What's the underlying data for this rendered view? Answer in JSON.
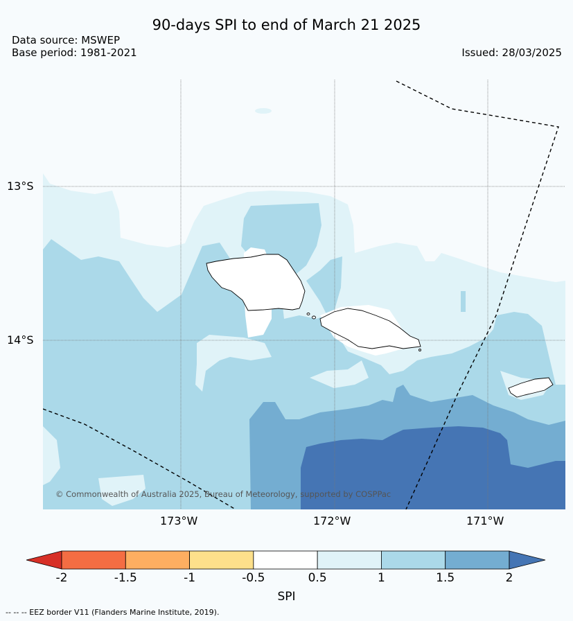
{
  "title": "90-days SPI to end of March 21 2025",
  "data_source": "Data source: MSWEP",
  "base_period": "Base period: 1981-2021",
  "issued": "Issued: 28/03/2025",
  "lat_labels": [
    "13°S",
    "14°S"
  ],
  "lon_labels": [
    "173°W",
    "172°W",
    "171°W"
  ],
  "copyright": "© Commonwealth of Australia 2025, Bureau of Meteorology, supported by COSPPac",
  "colorbar": {
    "label": "SPI",
    "ticks": [
      "-2",
      "-1.5",
      "-1",
      "-0.5",
      "0.5",
      "1",
      "1.5",
      "2"
    ],
    "colors": [
      "#d73027",
      "#f46d43",
      "#fdae61",
      "#fee08b",
      "#ffffff",
      "#e0f3f8",
      "#abd9e9",
      "#74add1",
      "#4575b4"
    ]
  },
  "footnote": "--  --  -- EEZ border V11 (Flanders Marine Institute, 2019)."
}
